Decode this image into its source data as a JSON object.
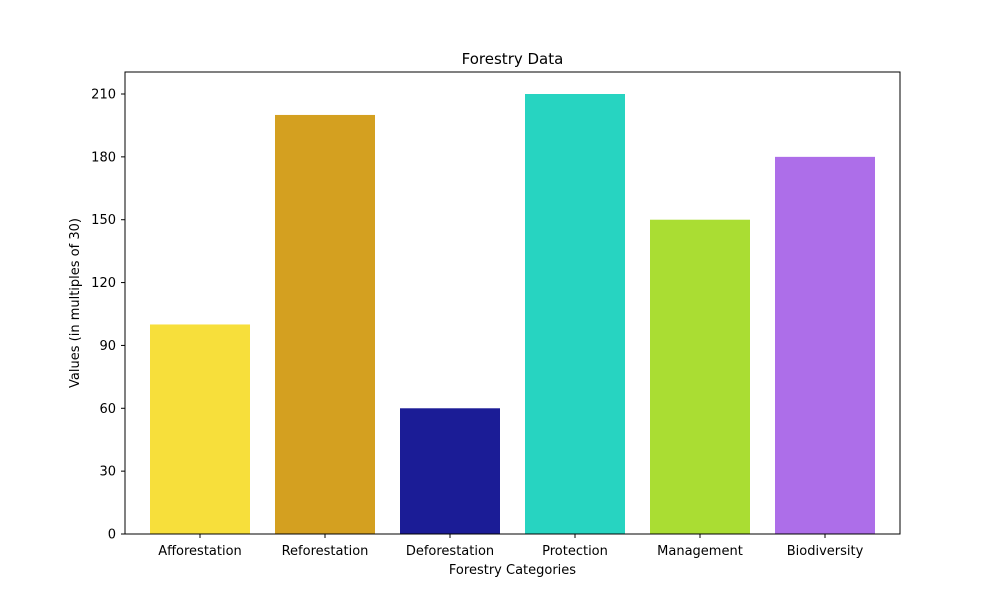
{
  "chart_data": {
    "type": "bar",
    "title": "Forestry Data",
    "xlabel": "Forestry Categories",
    "ylabel": "Values (in multiples of 30)",
    "categories": [
      "Afforestation",
      "Reforestation",
      "Deforestation",
      "Protection",
      "Management",
      "Biodiversity"
    ],
    "values": [
      100,
      200,
      60,
      210,
      150,
      180
    ],
    "colors": [
      "#f7df3b",
      "#d4a020",
      "#1b1c96",
      "#27d4c1",
      "#aadd33",
      "#ad6ee9"
    ],
    "ylim": [
      0,
      220.5
    ],
    "yticks": [
      0,
      30,
      60,
      90,
      120,
      150,
      180,
      210
    ],
    "grid": false,
    "legend": "none"
  }
}
